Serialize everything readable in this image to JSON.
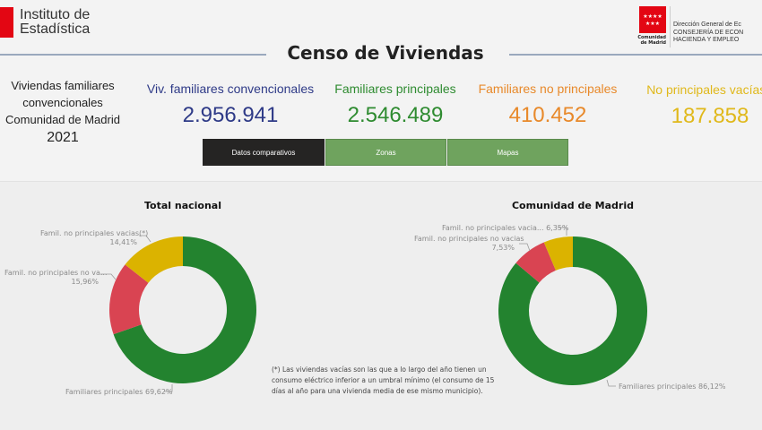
{
  "header": {
    "org": "Instituto de\nEstadística",
    "org_line1": "Instituto de",
    "org_line2": "Estadística",
    "region_logo_line1": "Comunidad",
    "region_logo_line2": "de Madrid",
    "dept_line1": "Dirección General de Ec",
    "dept_line2": "CONSEJERÍA DE ECON",
    "dept_line3": "HACIENDA Y EMPLEO",
    "title": "Censo de Viviendas"
  },
  "summary": {
    "line1": "Viviendas familiares",
    "line2": "convencionales",
    "line3": "Comunidad de Madrid",
    "year": "2021"
  },
  "kpis": [
    {
      "label": "Viv. familiares convencionales",
      "value": "2.956.941",
      "color": "#2e3a87"
    },
    {
      "label": "Familiares principales",
      "value": "2.546.489",
      "color": "#2e8b30"
    },
    {
      "label": "Familiares no principales",
      "value": "410.452",
      "color": "#e8892a"
    },
    {
      "label": "No principales vacías (",
      "value": "187.858",
      "color": "#e0b81a"
    }
  ],
  "nav": [
    {
      "label": "Datos comparativos",
      "active": true
    },
    {
      "label": "Zonas",
      "active": false
    },
    {
      "label": "Mapas",
      "active": false
    }
  ],
  "colors": {
    "principales": "#23832f",
    "no_vacias": "#d94452",
    "vacias": "#dbb300",
    "nav_active": "#252423",
    "nav": "#6fa35e"
  },
  "chart_data": [
    {
      "type": "pie",
      "title": "Total nacional",
      "donut": true,
      "categories": [
        "Familiares principales",
        "Famil. no principales no va...",
        "Famil. no principales vacias(*)"
      ],
      "values": [
        69.62,
        15.96,
        14.41
      ],
      "labels": [
        "69,62%",
        "15,96%",
        "14,41%"
      ]
    },
    {
      "type": "pie",
      "title": "Comunidad de Madrid",
      "donut": true,
      "categories": [
        "Familiares principales",
        "Famil. no principales no vacias",
        "Famil. no principales vacia..."
      ],
      "values": [
        86.12,
        7.53,
        6.35
      ],
      "labels": [
        "86,12%",
        "7,53%",
        "6,35%"
      ]
    }
  ],
  "footnote": "(*) Las viviendas vacías son las que a lo largo del año tienen un consumo eléctrico inferior a un umbral mínimo (el consumo de 15 días al año para una vivienda media de ese mismo municipio)."
}
